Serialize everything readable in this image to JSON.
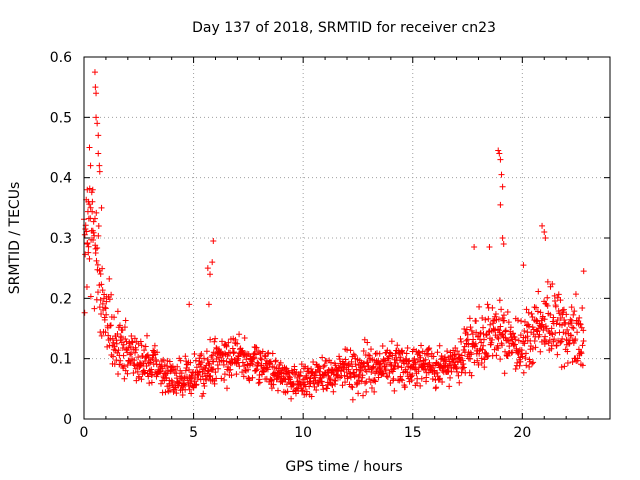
{
  "chart_data": {
    "type": "scatter",
    "title": "Day 137 of 2018, SRMTID for receiver cn23",
    "xlabel": "GPS time / hours",
    "ylabel": "SRMTID / TECUs",
    "xlim": [
      0,
      24
    ],
    "ylim": [
      0,
      0.6
    ],
    "x_ticks": [
      0,
      5,
      10,
      15,
      20
    ],
    "x_tick_labels": [
      "0",
      "5",
      "10",
      "15",
      "20"
    ],
    "y_ticks": [
      0,
      0.1,
      0.2,
      0.3,
      0.4,
      0.5,
      0.6
    ],
    "y_tick_labels": [
      "0",
      "0.1",
      "0.2",
      "0.3",
      "0.4",
      "0.5",
      "0.6"
    ],
    "grid": true,
    "marker": "+",
    "color": "#ff0000",
    "trend": [
      {
        "x": 0.0,
        "y": 0.3,
        "spread": 0.09
      },
      {
        "x": 0.5,
        "y": 0.3,
        "spread": 0.1
      },
      {
        "x": 0.8,
        "y": 0.2,
        "spread": 0.06
      },
      {
        "x": 1.2,
        "y": 0.15,
        "spread": 0.05
      },
      {
        "x": 2.0,
        "y": 0.11,
        "spread": 0.04
      },
      {
        "x": 3.0,
        "y": 0.09,
        "spread": 0.03
      },
      {
        "x": 4.0,
        "y": 0.07,
        "spread": 0.03
      },
      {
        "x": 5.0,
        "y": 0.07,
        "spread": 0.03
      },
      {
        "x": 6.0,
        "y": 0.09,
        "spread": 0.035
      },
      {
        "x": 7.0,
        "y": 0.11,
        "spread": 0.035
      },
      {
        "x": 8.0,
        "y": 0.09,
        "spread": 0.03
      },
      {
        "x": 9.0,
        "y": 0.07,
        "spread": 0.025
      },
      {
        "x": 10.0,
        "y": 0.06,
        "spread": 0.025
      },
      {
        "x": 11.0,
        "y": 0.075,
        "spread": 0.03
      },
      {
        "x": 12.0,
        "y": 0.08,
        "spread": 0.03
      },
      {
        "x": 13.0,
        "y": 0.085,
        "spread": 0.03
      },
      {
        "x": 14.0,
        "y": 0.085,
        "spread": 0.03
      },
      {
        "x": 15.0,
        "y": 0.09,
        "spread": 0.03
      },
      {
        "x": 16.0,
        "y": 0.085,
        "spread": 0.03
      },
      {
        "x": 17.0,
        "y": 0.095,
        "spread": 0.03
      },
      {
        "x": 18.0,
        "y": 0.13,
        "spread": 0.04
      },
      {
        "x": 19.0,
        "y": 0.14,
        "spread": 0.045
      },
      {
        "x": 20.0,
        "y": 0.12,
        "spread": 0.04
      },
      {
        "x": 21.0,
        "y": 0.17,
        "spread": 0.05
      },
      {
        "x": 22.0,
        "y": 0.14,
        "spread": 0.045
      },
      {
        "x": 22.8,
        "y": 0.13,
        "spread": 0.045
      }
    ],
    "spikes": [
      {
        "x": 0.25,
        "y": 0.45
      },
      {
        "x": 0.3,
        "y": 0.42
      },
      {
        "x": 0.4,
        "y": 0.38
      },
      {
        "x": 0.5,
        "y": 0.575
      },
      {
        "x": 0.52,
        "y": 0.55
      },
      {
        "x": 0.55,
        "y": 0.54
      },
      {
        "x": 0.55,
        "y": 0.5
      },
      {
        "x": 0.6,
        "y": 0.49
      },
      {
        "x": 0.65,
        "y": 0.47
      },
      {
        "x": 0.65,
        "y": 0.44
      },
      {
        "x": 0.7,
        "y": 0.42
      },
      {
        "x": 0.72,
        "y": 0.41
      },
      {
        "x": 0.15,
        "y": 0.38
      },
      {
        "x": 0.2,
        "y": 0.36
      },
      {
        "x": 0.8,
        "y": 0.35
      },
      {
        "x": 4.8,
        "y": 0.19
      },
      {
        "x": 5.65,
        "y": 0.25
      },
      {
        "x": 5.75,
        "y": 0.24
      },
      {
        "x": 5.85,
        "y": 0.26
      },
      {
        "x": 5.9,
        "y": 0.295
      },
      {
        "x": 5.7,
        "y": 0.19
      },
      {
        "x": 17.8,
        "y": 0.285
      },
      {
        "x": 18.5,
        "y": 0.285
      },
      {
        "x": 18.9,
        "y": 0.445
      },
      {
        "x": 18.95,
        "y": 0.44
      },
      {
        "x": 19.0,
        "y": 0.43
      },
      {
        "x": 19.05,
        "y": 0.405
      },
      {
        "x": 19.1,
        "y": 0.385
      },
      {
        "x": 19.0,
        "y": 0.355
      },
      {
        "x": 19.1,
        "y": 0.3
      },
      {
        "x": 19.15,
        "y": 0.29
      },
      {
        "x": 20.9,
        "y": 0.32
      },
      {
        "x": 21.0,
        "y": 0.31
      },
      {
        "x": 21.05,
        "y": 0.3
      },
      {
        "x": 20.05,
        "y": 0.255
      },
      {
        "x": 22.8,
        "y": 0.245
      }
    ],
    "seed": 137
  }
}
